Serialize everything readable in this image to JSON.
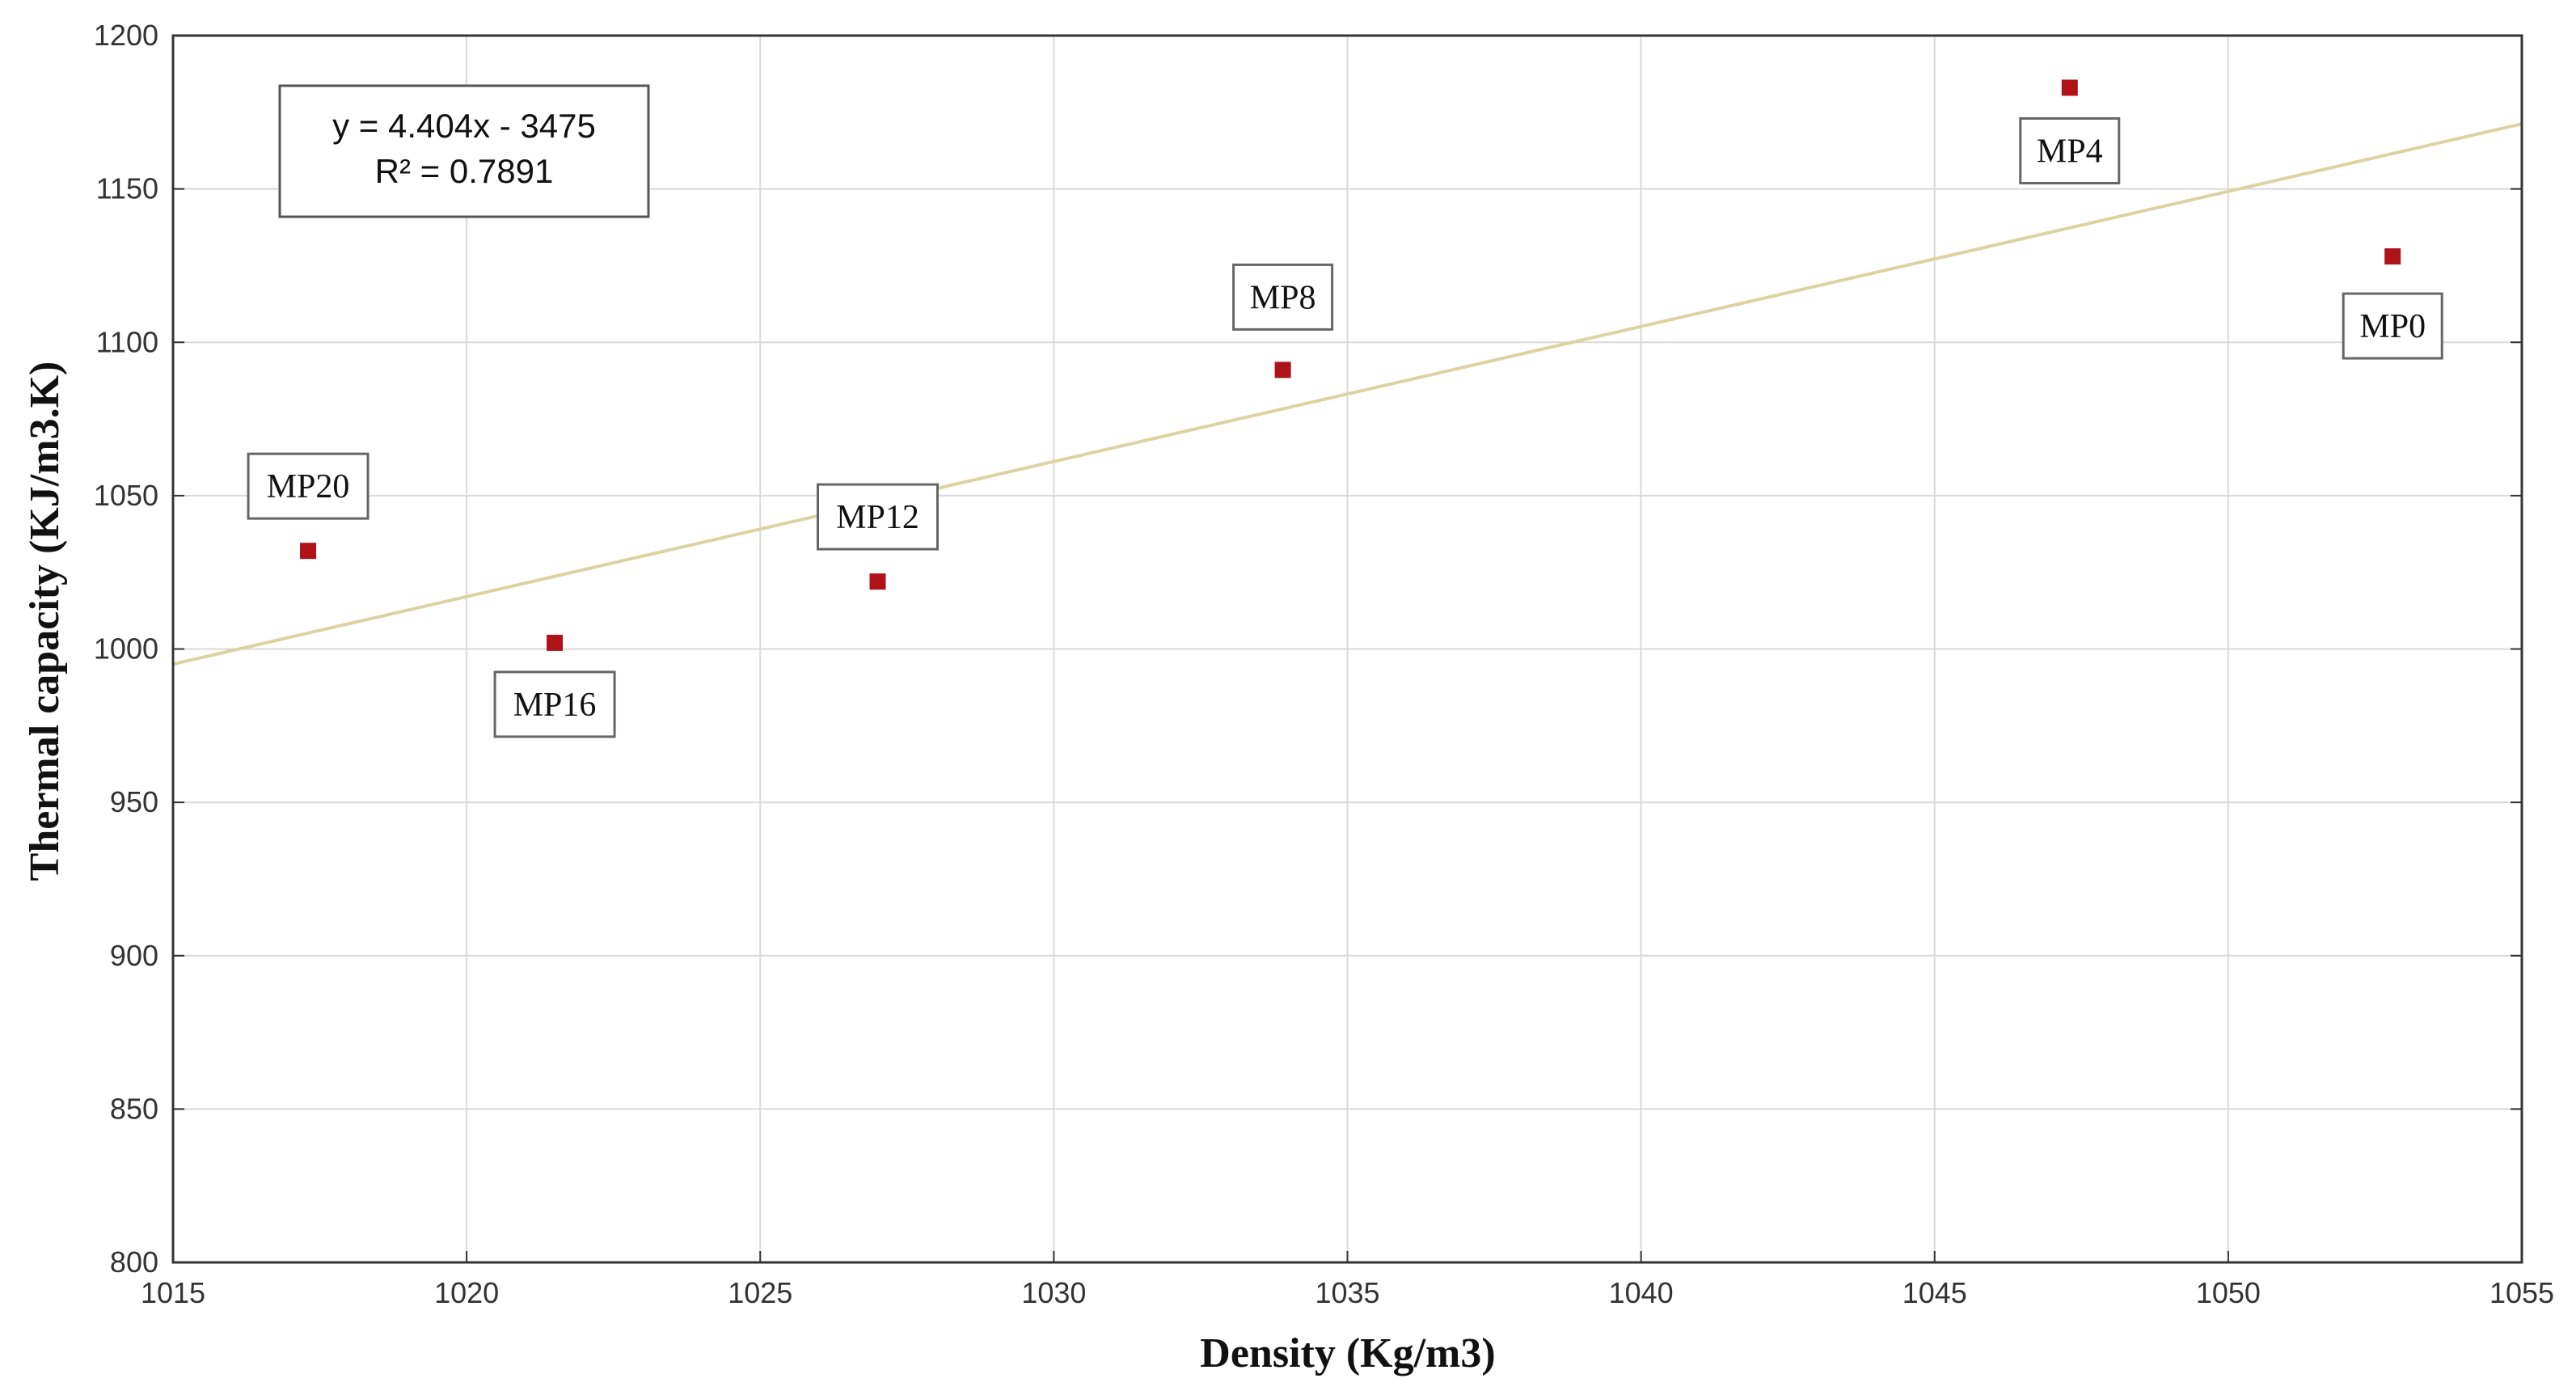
{
  "chart_data": {
    "type": "scatter",
    "xlabel": "Density (Kg/m3)",
    "ylabel": "Thermal capacity (KJ/m3.K)",
    "xlim": [
      1015,
      1055
    ],
    "ylim": [
      800,
      1200
    ],
    "xticks": [
      1015,
      1020,
      1025,
      1030,
      1035,
      1040,
      1045,
      1050,
      1055
    ],
    "yticks": [
      800,
      850,
      900,
      950,
      1000,
      1050,
      1100,
      1150,
      1200
    ],
    "grid": true,
    "points": [
      {
        "label": "MP20",
        "x": 1017.3,
        "y": 1032
      },
      {
        "label": "MP16",
        "x": 1021.5,
        "y": 1002
      },
      {
        "label": "MP12",
        "x": 1027.0,
        "y": 1022
      },
      {
        "label": "MP8",
        "x": 1033.9,
        "y": 1091
      },
      {
        "label": "MP4",
        "x": 1047.3,
        "y": 1183
      },
      {
        "label": "MP0",
        "x": 1052.8,
        "y": 1128
      }
    ],
    "trendline": {
      "slope": 4.404,
      "intercept": -3475,
      "equation": "y = 4.404x - 3475",
      "r_squared": "R² = 0.7891"
    },
    "colors": {
      "point": "#b0121a",
      "trendline": "#dcd3a0",
      "grid": "#d9d9d9",
      "axis": "#333333"
    }
  }
}
